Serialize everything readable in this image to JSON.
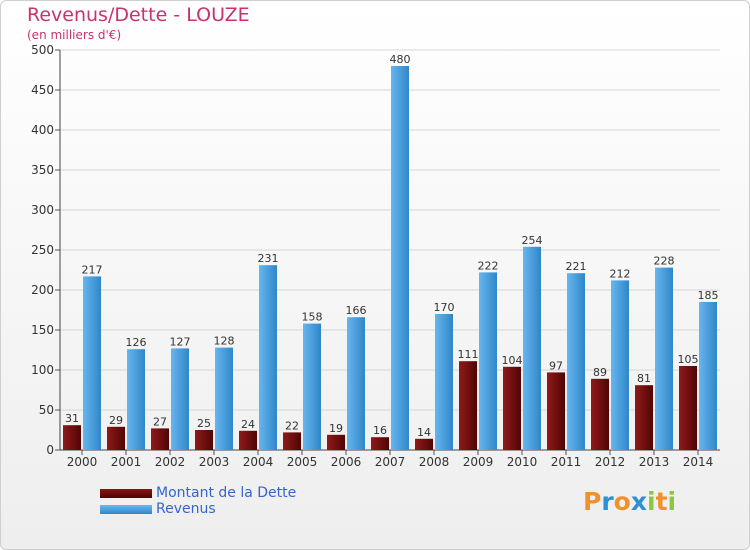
{
  "chart_data": {
    "type": "bar",
    "title": "Revenus/Dette - LOUZE",
    "subtitle": "(en milliers d'€)",
    "categories": [
      "2000",
      "2001",
      "2002",
      "2003",
      "2004",
      "2005",
      "2006",
      "2007",
      "2008",
      "2009",
      "2010",
      "2011",
      "2012",
      "2013",
      "2014"
    ],
    "series": [
      {
        "name": "Montant de la Dette",
        "color": "#6b0a0a",
        "values": [
          31,
          29,
          27,
          25,
          24,
          22,
          19,
          16,
          14,
          111,
          104,
          97,
          89,
          81,
          105
        ]
      },
      {
        "name": "Revenus",
        "color": "#4aa3e3",
        "values": [
          217,
          126,
          127,
          128,
          231,
          158,
          166,
          480,
          170,
          222,
          254,
          221,
          212,
          228,
          185
        ]
      }
    ],
    "ylim": [
      0,
      500
    ],
    "yticks": [
      0,
      50,
      100,
      150,
      200,
      250,
      300,
      350,
      400,
      450,
      500
    ],
    "grid": true,
    "legend_position": "bottom-left"
  },
  "logo": {
    "text": "Proxiti",
    "letters": [
      {
        "ch": "P",
        "color": "#f0922b"
      },
      {
        "ch": "r",
        "color": "#2f8fd3"
      },
      {
        "ch": "o",
        "color": "#f0922b"
      },
      {
        "ch": "x",
        "color": "#2f8fd3"
      },
      {
        "ch": "i",
        "color": "#8dc63f"
      },
      {
        "ch": "t",
        "color": "#f0922b"
      },
      {
        "ch": "i",
        "color": "#8dc63f"
      }
    ]
  }
}
